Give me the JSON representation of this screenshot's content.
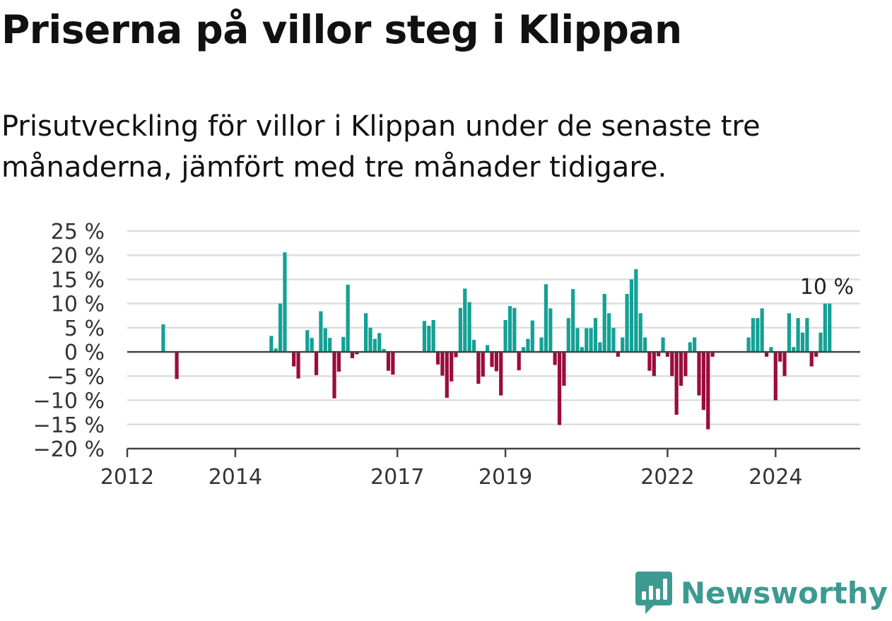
{
  "title": "Priserna på villor steg i Klippan",
  "subtitle": "Prisutveckling för villor i Klippan under de senaste tre månaderna, jämfört med tre månader tidigare.",
  "logo": {
    "text": "Newsworthy",
    "icon": "newsworthy-bar-chart-icon"
  },
  "colors": {
    "positive": "#13a195",
    "negative": "#9b0b3c",
    "grid": "#dddddd",
    "axis": "#444444",
    "text": "#333333"
  },
  "chart_data": {
    "type": "bar",
    "x_unit": "month",
    "ylim": [
      -20,
      25
    ],
    "y_ticks": [
      25,
      20,
      15,
      10,
      5,
      0,
      -5,
      -10,
      -15,
      -20
    ],
    "y_tick_labels": [
      "25 %",
      "20 %",
      "15 %",
      "10 %",
      "5 %",
      "0 %",
      "−5 %",
      "−10 %",
      "−15 %",
      "−20 %"
    ],
    "x_ticks": [
      "2012-01",
      "2014-01",
      "2017-01",
      "2019-01",
      "2022-01",
      "2024-01"
    ],
    "x_tick_labels": [
      "2012",
      "2014",
      "2017",
      "2019",
      "2022",
      "2024"
    ],
    "annotation": {
      "text": "10 %",
      "x": "2024-12"
    },
    "grid": true,
    "points": [
      [
        "2012-09",
        5.7
      ],
      [
        "2012-12",
        -5.6
      ],
      [
        "2014-09",
        3.3
      ],
      [
        "2014-10",
        0.7
      ],
      [
        "2014-11",
        10.0
      ],
      [
        "2014-12",
        20.6
      ],
      [
        "2015-02",
        -3.0
      ],
      [
        "2015-03",
        -5.5
      ],
      [
        "2015-05",
        4.5
      ],
      [
        "2015-06",
        2.9
      ],
      [
        "2015-07",
        -4.8
      ],
      [
        "2015-08",
        8.4
      ],
      [
        "2015-09",
        4.9
      ],
      [
        "2015-10",
        2.9
      ],
      [
        "2015-11",
        -9.6
      ],
      [
        "2015-12",
        -4.1
      ],
      [
        "2016-01",
        3.1
      ],
      [
        "2016-02",
        13.9
      ],
      [
        "2016-03",
        -1.3
      ],
      [
        "2016-04",
        -0.5
      ],
      [
        "2016-06",
        8.0
      ],
      [
        "2016-07",
        5.0
      ],
      [
        "2016-08",
        2.7
      ],
      [
        "2016-09",
        3.9
      ],
      [
        "2016-10",
        0.6
      ],
      [
        "2016-11",
        -3.9
      ],
      [
        "2016-12",
        -4.7
      ],
      [
        "2017-07",
        6.4
      ],
      [
        "2017-08",
        5.4
      ],
      [
        "2017-09",
        6.6
      ],
      [
        "2017-10",
        -2.6
      ],
      [
        "2017-11",
        -4.9
      ],
      [
        "2017-12",
        -9.5
      ],
      [
        "2018-01",
        -6.1
      ],
      [
        "2018-02",
        -1.1
      ],
      [
        "2018-03",
        9.1
      ],
      [
        "2018-04",
        13.1
      ],
      [
        "2018-05",
        10.3
      ],
      [
        "2018-06",
        2.5
      ],
      [
        "2018-07",
        -6.6
      ],
      [
        "2018-08",
        -5.1
      ],
      [
        "2018-09",
        1.4
      ],
      [
        "2018-10",
        -3.1
      ],
      [
        "2018-11",
        -4.0
      ],
      [
        "2018-12",
        -9.0
      ],
      [
        "2019-01",
        6.6
      ],
      [
        "2019-02",
        9.5
      ],
      [
        "2019-03",
        9.1
      ],
      [
        "2019-04",
        -3.8
      ],
      [
        "2019-05",
        1.0
      ],
      [
        "2019-06",
        2.7
      ],
      [
        "2019-07",
        6.5
      ],
      [
        "2019-09",
        3.0
      ],
      [
        "2019-10",
        14.0
      ],
      [
        "2019-11",
        9.0
      ],
      [
        "2019-12",
        -2.7
      ],
      [
        "2020-01",
        -15.1
      ],
      [
        "2020-02",
        -7.0
      ],
      [
        "2020-03",
        7.0
      ],
      [
        "2020-04",
        13.0
      ],
      [
        "2020-05",
        4.9
      ],
      [
        "2020-06",
        1.0
      ],
      [
        "2020-07",
        4.9
      ],
      [
        "2020-08",
        4.9
      ],
      [
        "2020-09",
        7.0
      ],
      [
        "2020-10",
        2.0
      ],
      [
        "2020-11",
        12.0
      ],
      [
        "2020-12",
        8.0
      ],
      [
        "2021-01",
        5.0
      ],
      [
        "2021-02",
        -1.0
      ],
      [
        "2021-03",
        3.0
      ],
      [
        "2021-04",
        12.0
      ],
      [
        "2021-05",
        15.0
      ],
      [
        "2021-06",
        17.1
      ],
      [
        "2021-07",
        8.0
      ],
      [
        "2021-08",
        3.0
      ],
      [
        "2021-09",
        -3.9
      ],
      [
        "2021-10",
        -5.0
      ],
      [
        "2021-11",
        -0.9
      ],
      [
        "2021-12",
        3.0
      ],
      [
        "2022-01",
        -1.0
      ],
      [
        "2022-02",
        -5.0
      ],
      [
        "2022-03",
        -13.0
      ],
      [
        "2022-04",
        -7.0
      ],
      [
        "2022-05",
        -5.0
      ],
      [
        "2022-06",
        2.0
      ],
      [
        "2022-07",
        3.0
      ],
      [
        "2022-08",
        -9.0
      ],
      [
        "2022-09",
        -12.0
      ],
      [
        "2022-10",
        -16.0
      ],
      [
        "2022-11",
        -1.0
      ],
      [
        "2023-07",
        3.0
      ],
      [
        "2023-08",
        7.0
      ],
      [
        "2023-09",
        7.0
      ],
      [
        "2023-10",
        9.0
      ],
      [
        "2023-11",
        -1.0
      ],
      [
        "2023-12",
        1.0
      ],
      [
        "2024-01",
        -10.0
      ],
      [
        "2024-02",
        -2.0
      ],
      [
        "2024-03",
        -5.0
      ],
      [
        "2024-04",
        8.0
      ],
      [
        "2024-05",
        1.0
      ],
      [
        "2024-06",
        7.0
      ],
      [
        "2024-07",
        4.0
      ],
      [
        "2024-08",
        7.0
      ],
      [
        "2024-09",
        -3.0
      ],
      [
        "2024-10",
        -1.0
      ],
      [
        "2024-11",
        4.0
      ],
      [
        "2024-12",
        10.0
      ],
      [
        "2025-01",
        10.0
      ]
    ]
  }
}
